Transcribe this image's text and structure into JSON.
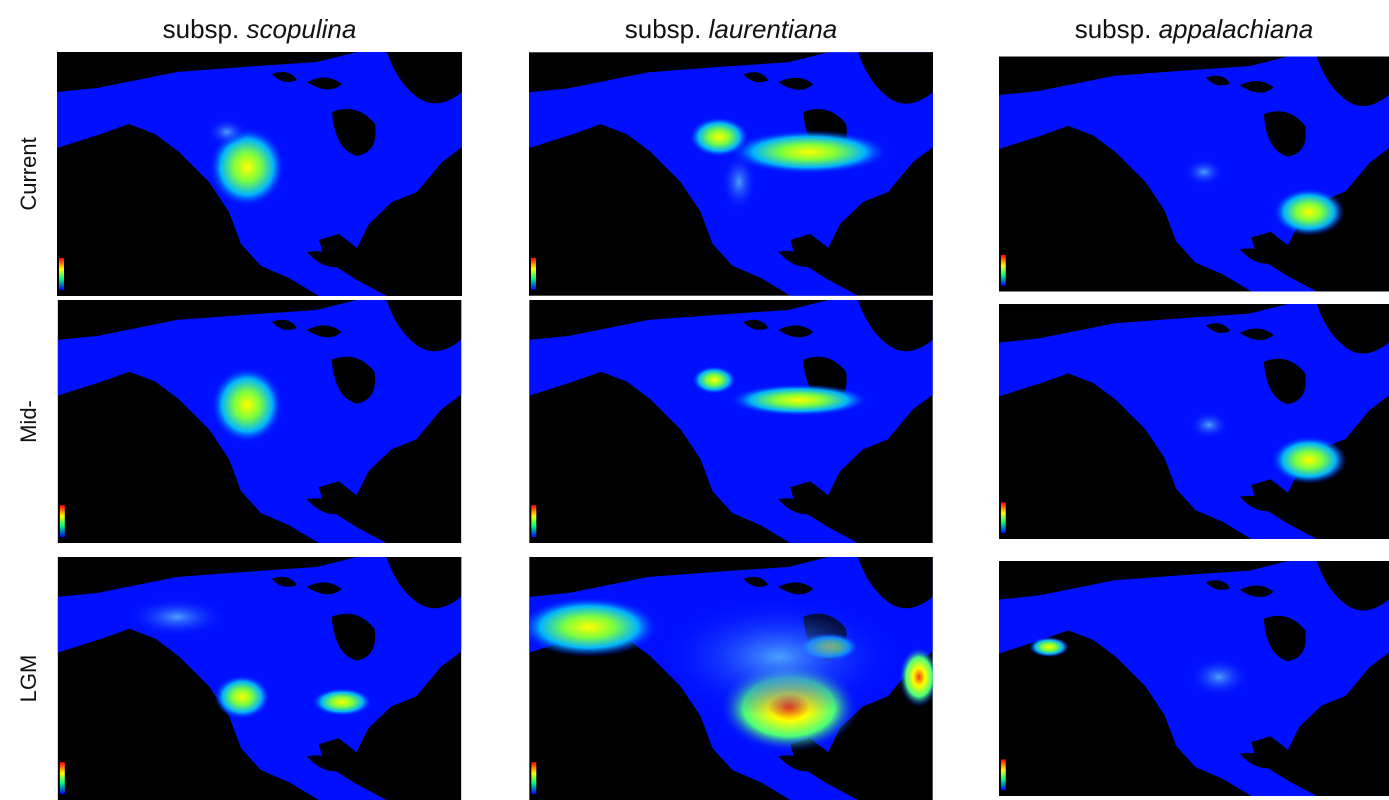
{
  "columns": [
    {
      "prefix": "subsp.",
      "name": "scopulina"
    },
    {
      "prefix": "subsp.",
      "name": "laurentiana"
    },
    {
      "prefix": "subsp.",
      "name": "appalachiana"
    }
  ],
  "rows": [
    {
      "label": "Current"
    },
    {
      "label": "Mid-"
    },
    {
      "label": "LGM"
    }
  ]
}
